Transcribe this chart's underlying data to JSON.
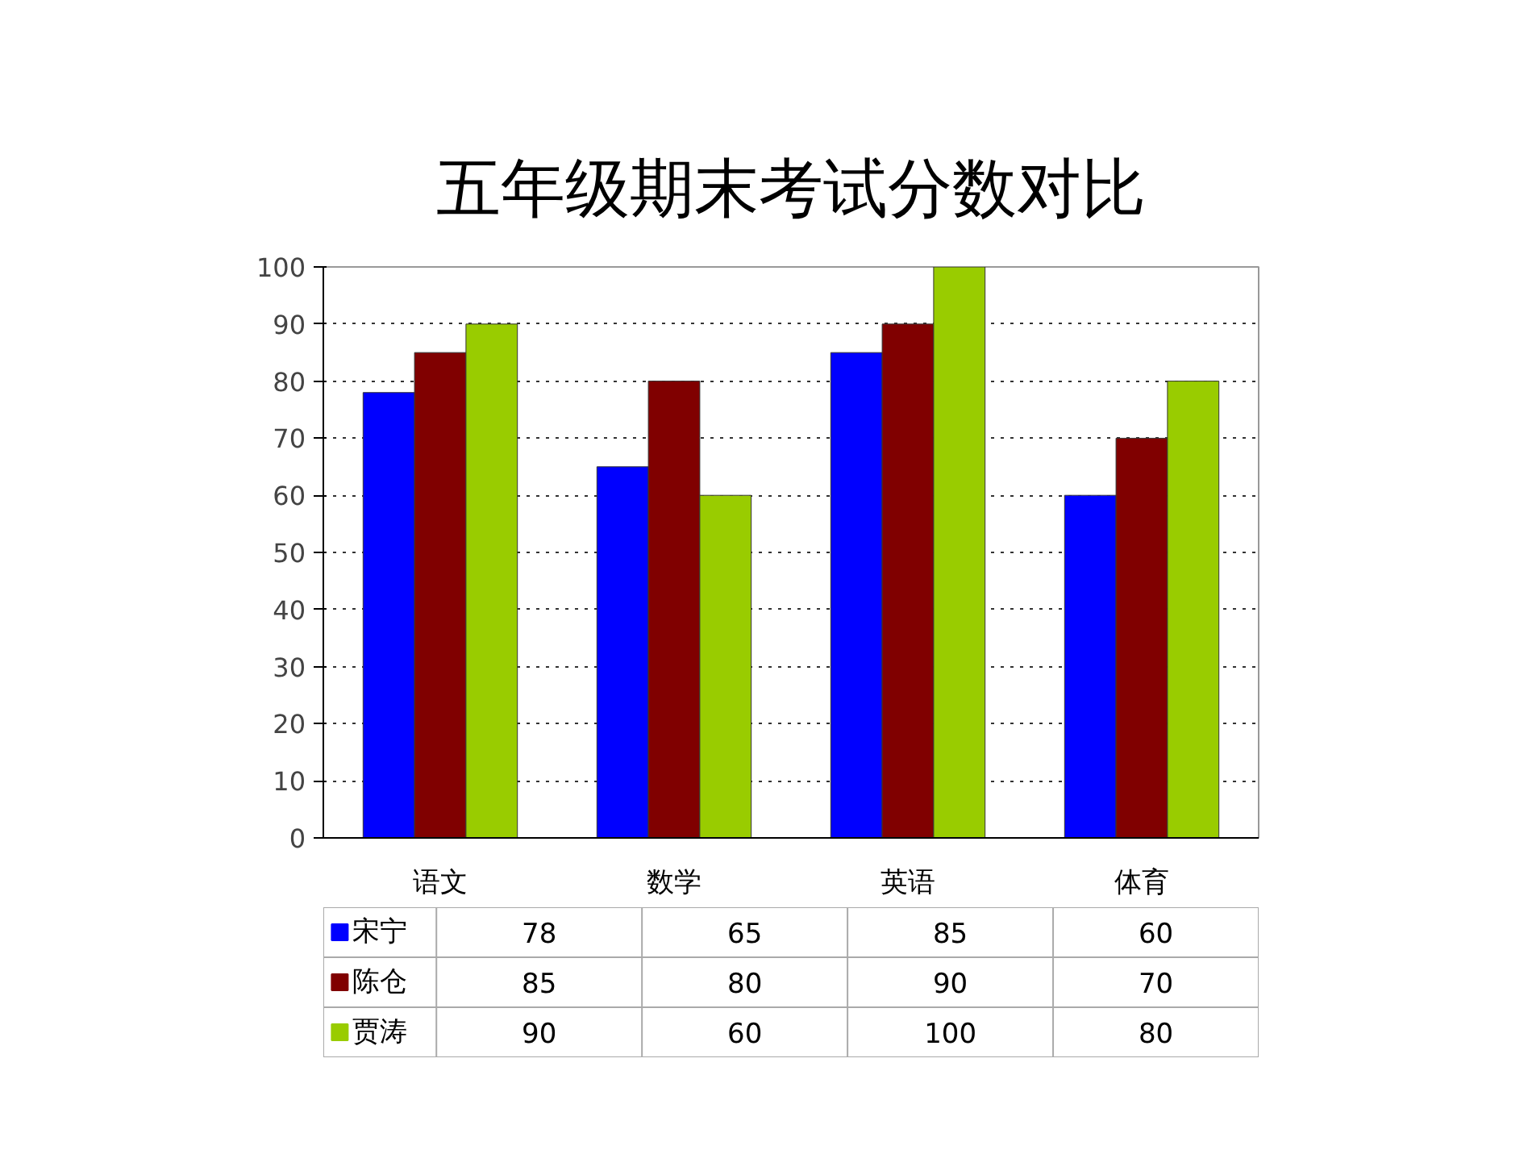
{
  "chart_data": {
    "type": "bar",
    "title": "五年级期末考试分数对比",
    "categories": [
      "语文",
      "数学",
      "英语",
      "体育"
    ],
    "series": [
      {
        "name": "宋宁",
        "color": "#0000ff",
        "values": [
          78,
          65,
          85,
          60
        ]
      },
      {
        "name": "陈仓",
        "color": "#800000",
        "values": [
          85,
          80,
          90,
          70
        ]
      },
      {
        "name": "贾涛",
        "color": "#99cc00",
        "values": [
          90,
          60,
          100,
          80
        ]
      }
    ],
    "ylim": [
      0,
      100
    ],
    "yticks": [
      0,
      10,
      20,
      30,
      40,
      50,
      60,
      70,
      80,
      90,
      100
    ],
    "grid": "y",
    "legend": "bottom",
    "data_labels": true
  }
}
